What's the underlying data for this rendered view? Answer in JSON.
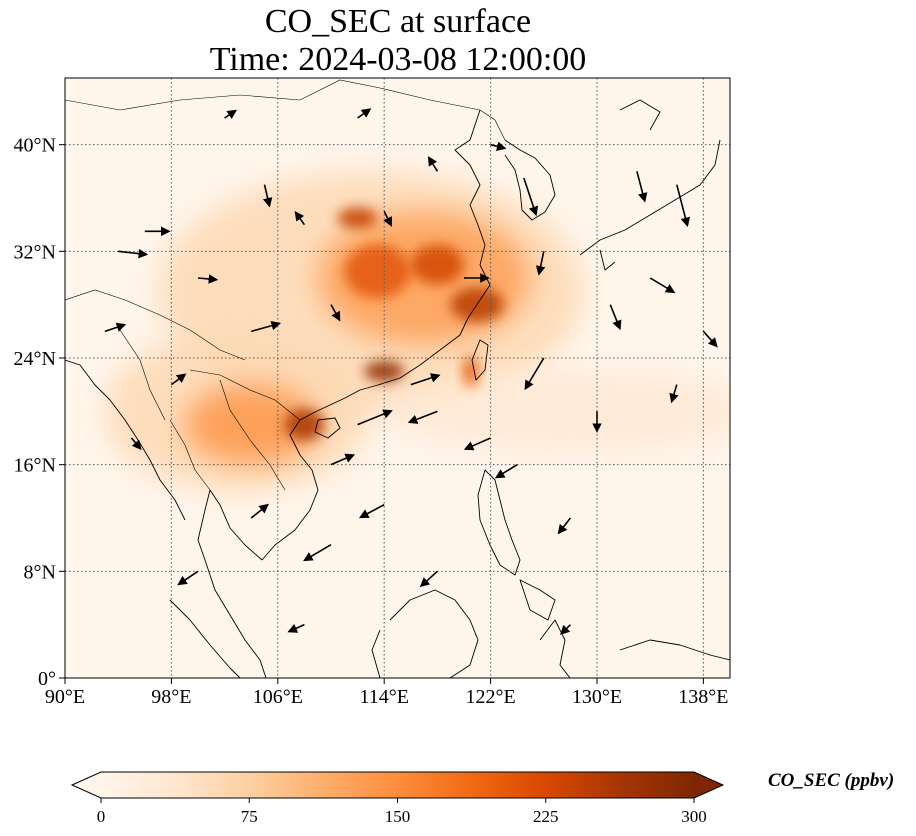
{
  "title": {
    "line1": "CO_SEC at surface",
    "line2": "Time: 2024-03-08 12:00:00"
  },
  "map": {
    "lon_range": [
      90,
      140
    ],
    "lat_range": [
      0,
      45
    ],
    "lon_ticks": [
      {
        "value": 90,
        "label": "90°E"
      },
      {
        "value": 98,
        "label": "98°E"
      },
      {
        "value": 106,
        "label": "106°E"
      },
      {
        "value": 114,
        "label": "114°E"
      },
      {
        "value": 122,
        "label": "122°E"
      },
      {
        "value": 130,
        "label": "130°E"
      },
      {
        "value": 138,
        "label": "138°E"
      }
    ],
    "lat_ticks": [
      {
        "value": 0,
        "label": "0°"
      },
      {
        "value": 8,
        "label": "8°N"
      },
      {
        "value": 16,
        "label": "16°N"
      },
      {
        "value": 24,
        "label": "24°N"
      },
      {
        "value": 32,
        "label": "32°N"
      },
      {
        "value": 40,
        "label": "40°N"
      }
    ],
    "gridlines": true,
    "background_color": "#fff5eb",
    "colormap": "OrRd"
  },
  "colorbar": {
    "label": "CO_SEC (ppbv)",
    "range": [
      0,
      300
    ],
    "extend": "both",
    "ticks": [
      {
        "value": 0,
        "label": "0"
      },
      {
        "value": 75,
        "label": "75"
      },
      {
        "value": 150,
        "label": "150"
      },
      {
        "value": 225,
        "label": "225"
      },
      {
        "value": 300,
        "label": "300"
      }
    ],
    "stops": [
      "#fff5eb",
      "#fee6ce",
      "#fdd0a2",
      "#fdae6b",
      "#fd8d3c",
      "#f16913",
      "#d94801",
      "#a63603",
      "#7f2704"
    ]
  },
  "concentration_blobs": [
    {
      "lon": 113,
      "lat": 29,
      "rlon": 16,
      "rlat": 9,
      "value": 60
    },
    {
      "lon": 103,
      "lat": 20,
      "rlon": 10,
      "rlat": 6,
      "value": 60
    },
    {
      "lon": 128,
      "lat": 20,
      "rlon": 14,
      "rlat": 3,
      "value": 30
    },
    {
      "lon": 117,
      "lat": 30,
      "rlon": 8,
      "rlat": 5,
      "value": 130
    },
    {
      "lon": 104,
      "lat": 19,
      "rlon": 5,
      "rlat": 3,
      "value": 140
    },
    {
      "lon": 113.5,
      "lat": 30.5,
      "rlon": 2.5,
      "rlat": 2,
      "value": 210
    },
    {
      "lon": 118,
      "lat": 31,
      "rlon": 2,
      "rlat": 1.5,
      "value": 230
    },
    {
      "lon": 121,
      "lat": 28,
      "rlon": 2,
      "rlat": 1.3,
      "value": 250
    },
    {
      "lon": 114,
      "lat": 23,
      "rlon": 1.5,
      "rlat": 0.8,
      "value": 280
    },
    {
      "lon": 108,
      "lat": 19,
      "rlon": 1.5,
      "rlat": 1.2,
      "value": 260
    },
    {
      "lon": 112,
      "lat": 34.5,
      "rlon": 1.5,
      "rlat": 0.8,
      "value": 240
    },
    {
      "lon": 120.5,
      "lat": 23,
      "rlon": 0.6,
      "rlat": 1.2,
      "value": 200
    }
  ],
  "wind_vectors": [
    {
      "lon": 124.5,
      "lat": 37.5,
      "u": 0.8,
      "v": -2.4
    },
    {
      "lon": 120,
      "lat": 30,
      "u": 1.5,
      "v": 0
    },
    {
      "lon": 116,
      "lat": 22,
      "u": 1.8,
      "v": 0.6
    },
    {
      "lon": 112,
      "lat": 19,
      "u": 2.2,
      "v": 0.9
    },
    {
      "lon": 110,
      "lat": 16,
      "u": 1.4,
      "v": 0.6
    },
    {
      "lon": 104,
      "lat": 26,
      "u": 1.8,
      "v": 0.5
    },
    {
      "lon": 96,
      "lat": 33.5,
      "u": 1.5,
      "v": 0
    },
    {
      "lon": 94,
      "lat": 32,
      "u": 1.8,
      "v": -0.2
    },
    {
      "lon": 118,
      "lat": 20,
      "u": -1.8,
      "v": -0.7
    },
    {
      "lon": 122,
      "lat": 18,
      "u": -1.6,
      "v": -0.7
    },
    {
      "lon": 126,
      "lat": 24,
      "u": -1.2,
      "v": -2
    },
    {
      "lon": 134,
      "lat": 30,
      "u": 1.5,
      "v": -0.9
    },
    {
      "lon": 136,
      "lat": 37,
      "u": 0.7,
      "v": -2.7
    },
    {
      "lon": 133,
      "lat": 38,
      "u": 0.5,
      "v": -1.9
    },
    {
      "lon": 131,
      "lat": 28,
      "u": 0.6,
      "v": -1.5
    },
    {
      "lon": 100,
      "lat": 8,
      "u": -1.2,
      "v": -0.8
    },
    {
      "lon": 110,
      "lat": 10,
      "u": -1.7,
      "v": -1
    },
    {
      "lon": 114,
      "lat": 13,
      "u": -1.5,
      "v": -0.8
    },
    {
      "lon": 118,
      "lat": 8,
      "u": -1,
      "v": -0.9
    },
    {
      "lon": 93,
      "lat": 26,
      "u": 1.2,
      "v": 0.4
    },
    {
      "lon": 105,
      "lat": 37,
      "u": 0.3,
      "v": -1.3
    },
    {
      "lon": 108,
      "lat": 34,
      "u": -0.5,
      "v": 0.7
    },
    {
      "lon": 110,
      "lat": 28,
      "u": 0.5,
      "v": -0.9
    },
    {
      "lon": 128,
      "lat": 12,
      "u": -0.7,
      "v": -0.9
    },
    {
      "lon": 124,
      "lat": 16,
      "u": -1.3,
      "v": -0.8
    },
    {
      "lon": 98,
      "lat": 22,
      "u": 0.8,
      "v": 0.6
    },
    {
      "lon": 102,
      "lat": 42,
      "u": 0.6,
      "v": 0.4
    },
    {
      "lon": 112,
      "lat": 42,
      "u": 0.7,
      "v": 0.5
    },
    {
      "lon": 126,
      "lat": 32,
      "u": -0.3,
      "v": -1.4
    },
    {
      "lon": 130,
      "lat": 20,
      "u": 0,
      "v": -1.2
    },
    {
      "lon": 136,
      "lat": 22,
      "u": -0.3,
      "v": -1
    },
    {
      "lon": 104,
      "lat": 12,
      "u": 1,
      "v": 0.8
    },
    {
      "lon": 95,
      "lat": 18,
      "u": 0.5,
      "v": -0.6
    },
    {
      "lon": 118,
      "lat": 38,
      "u": -0.5,
      "v": 0.8
    },
    {
      "lon": 122,
      "lat": 40,
      "u": 0.8,
      "v": -0.2
    },
    {
      "lon": 128,
      "lat": 4,
      "u": -0.5,
      "v": -0.5
    },
    {
      "lon": 108,
      "lat": 4,
      "u": -0.9,
      "v": -0.4
    },
    {
      "lon": 100,
      "lat": 30,
      "u": 1.1,
      "v": -0.1
    },
    {
      "lon": 114,
      "lat": 35,
      "u": 0.4,
      "v": -0.8
    },
    {
      "lon": 138,
      "lat": 26,
      "u": 0.8,
      "v": -0.9
    }
  ]
}
